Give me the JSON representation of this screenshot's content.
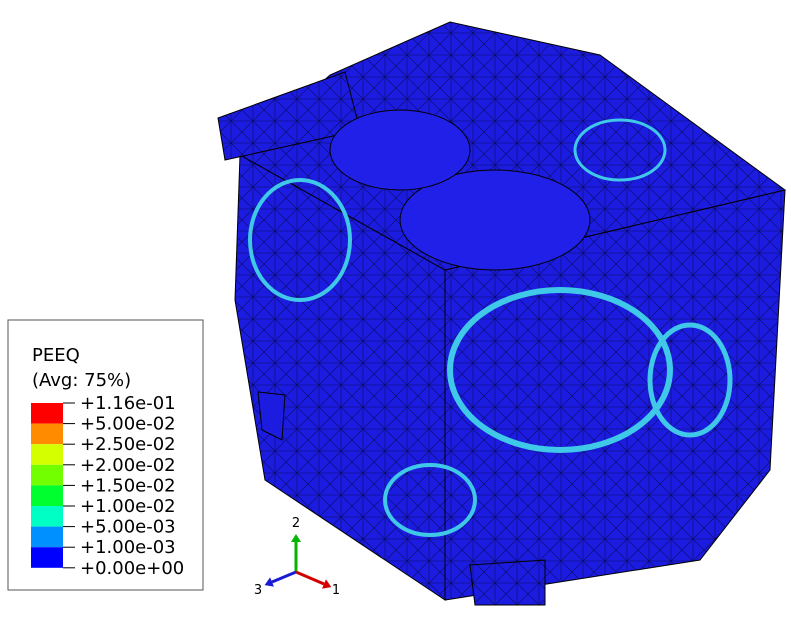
{
  "legend": {
    "title": "PEEQ",
    "subtitle": "(Avg: 75%)",
    "labels": [
      "+1.16e-01",
      "+5.00e-02",
      "+2.50e-02",
      "+2.00e-02",
      "+1.50e-02",
      "+1.00e-02",
      "+5.00e-03",
      "+1.00e-03",
      "+0.00e+00"
    ],
    "colors": [
      "#ff0000",
      "#ff8c00",
      "#d4ff00",
      "#72ff00",
      "#00ff2e",
      "#00ffc4",
      "#0090ff",
      "#0000ff"
    ]
  },
  "triad": {
    "axes": [
      {
        "label": "2",
        "color": "#00b400"
      },
      {
        "label": "1",
        "color": "#d40000"
      },
      {
        "label": "3",
        "color": "#1a1ad4"
      }
    ]
  }
}
